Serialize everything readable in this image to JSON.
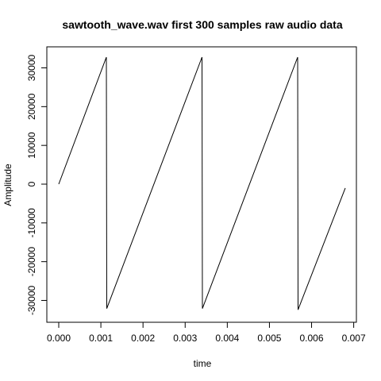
{
  "chart_data": {
    "type": "line",
    "title": "sawtooth_wave.wav first 300 samples raw audio data",
    "xlabel": "time",
    "ylabel": "Amplitude",
    "xlim": [
      0,
      0.0068
    ],
    "ylim": [
      -32768,
      32767
    ],
    "x_ticks": [
      0,
      0.001,
      0.002,
      0.003,
      0.004,
      0.005,
      0.006,
      0.007
    ],
    "x_tick_labels": [
      "0.000",
      "0.001",
      "0.002",
      "0.003",
      "0.004",
      "0.005",
      "0.006",
      "0.007"
    ],
    "y_ticks": [
      -30000,
      -20000,
      -10000,
      0,
      10000,
      20000,
      30000
    ],
    "y_tick_labels": [
      "-30000",
      "-20000",
      "-10000",
      "0",
      "10000",
      "20000",
      "30000"
    ],
    "grid": false,
    "legend": "none",
    "series": [
      {
        "x": [
          0,
          0.00113,
          0.00114,
          0.0034,
          0.00341,
          0.00567,
          0.00568,
          0.0068
        ],
        "y": [
          0,
          32767,
          -32100,
          32767,
          -32100,
          32767,
          -32400,
          -1000
        ]
      }
    ]
  }
}
